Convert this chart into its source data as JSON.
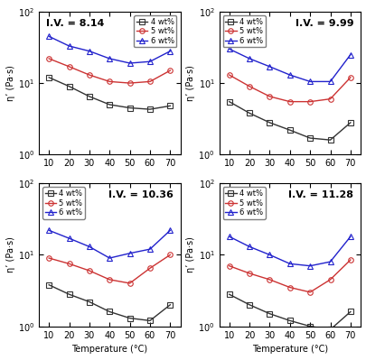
{
  "panels": [
    {
      "iv_label": "I.V. = 8.14",
      "iv_pos": "upper_left",
      "temperatures": [
        10,
        20,
        30,
        40,
        50,
        60,
        70
      ],
      "series": [
        {
          "label": "4 wt%",
          "color": "#333333",
          "marker": "s",
          "values": [
            12.0,
            9.0,
            6.5,
            5.0,
            4.5,
            4.3,
            4.8
          ]
        },
        {
          "label": "5 wt%",
          "color": "#cc3333",
          "marker": "o",
          "values": [
            22.0,
            17.0,
            13.0,
            10.5,
            10.0,
            10.5,
            15.0
          ]
        },
        {
          "label": "6 wt%",
          "color": "#2222cc",
          "marker": "^",
          "values": [
            45.0,
            33.0,
            28.0,
            22.0,
            19.0,
            20.0,
            28.0
          ]
        }
      ],
      "ylim": [
        1.0,
        100.0
      ],
      "yticks": [
        1,
        10,
        100
      ],
      "legend_loc": "upper right"
    },
    {
      "iv_label": "I.V. = 9.99",
      "iv_pos": "upper_right",
      "temperatures": [
        10,
        20,
        30,
        40,
        50,
        60,
        70
      ],
      "series": [
        {
          "label": "4 wt%",
          "color": "#333333",
          "marker": "s",
          "values": [
            5.5,
            3.8,
            2.8,
            2.2,
            1.7,
            1.6,
            2.8
          ]
        },
        {
          "label": "5 wt%",
          "color": "#cc3333",
          "marker": "o",
          "values": [
            13.0,
            9.0,
            6.5,
            5.5,
            5.5,
            6.0,
            12.0
          ]
        },
        {
          "label": "6 wt%",
          "color": "#2222cc",
          "marker": "^",
          "values": [
            30.0,
            22.0,
            17.0,
            13.0,
            10.5,
            10.5,
            25.0
          ]
        }
      ],
      "ylim": [
        1.0,
        100.0
      ],
      "yticks": [
        1,
        10,
        100
      ],
      "legend_loc": "upper left"
    },
    {
      "iv_label": "I.V. = 10.36",
      "iv_pos": "upper_right",
      "temperatures": [
        10,
        20,
        30,
        40,
        50,
        60,
        70
      ],
      "series": [
        {
          "label": "4 wt%",
          "color": "#333333",
          "marker": "s",
          "values": [
            3.8,
            2.8,
            2.2,
            1.6,
            1.3,
            1.2,
            2.0
          ]
        },
        {
          "label": "5 wt%",
          "color": "#cc3333",
          "marker": "o",
          "values": [
            9.0,
            7.5,
            6.0,
            4.5,
            4.0,
            6.5,
            10.0
          ]
        },
        {
          "label": "6 wt%",
          "color": "#2222cc",
          "marker": "^",
          "values": [
            22.0,
            17.0,
            13.0,
            9.0,
            10.5,
            12.0,
            22.0
          ]
        }
      ],
      "ylim": [
        1.0,
        100.0
      ],
      "yticks": [
        1,
        10,
        100
      ],
      "legend_loc": "upper left"
    },
    {
      "iv_label": "I.V. = 11.28",
      "iv_pos": "upper_right",
      "temperatures": [
        10,
        20,
        30,
        40,
        50,
        60,
        70
      ],
      "series": [
        {
          "label": "4 wt%",
          "color": "#333333",
          "marker": "s",
          "values": [
            2.8,
            2.0,
            1.5,
            1.2,
            1.0,
            0.9,
            1.6
          ]
        },
        {
          "label": "5 wt%",
          "color": "#cc3333",
          "marker": "o",
          "values": [
            7.0,
            5.5,
            4.5,
            3.5,
            3.0,
            4.5,
            8.5
          ]
        },
        {
          "label": "6 wt%",
          "color": "#2222cc",
          "marker": "^",
          "values": [
            18.0,
            13.0,
            10.0,
            7.5,
            7.0,
            8.0,
            18.0
          ]
        }
      ],
      "ylim": [
        1.0,
        100.0
      ],
      "yticks": [
        1,
        10,
        100
      ],
      "legend_loc": "upper left"
    }
  ],
  "xlabel": "Temperature (°C)",
  "ylabel": "η’ (Pa·s)",
  "xticks": [
    10,
    20,
    30,
    40,
    50,
    60,
    70
  ],
  "background_color": "#ffffff",
  "font_size": 7,
  "marker_size": 4,
  "line_width": 1.0
}
